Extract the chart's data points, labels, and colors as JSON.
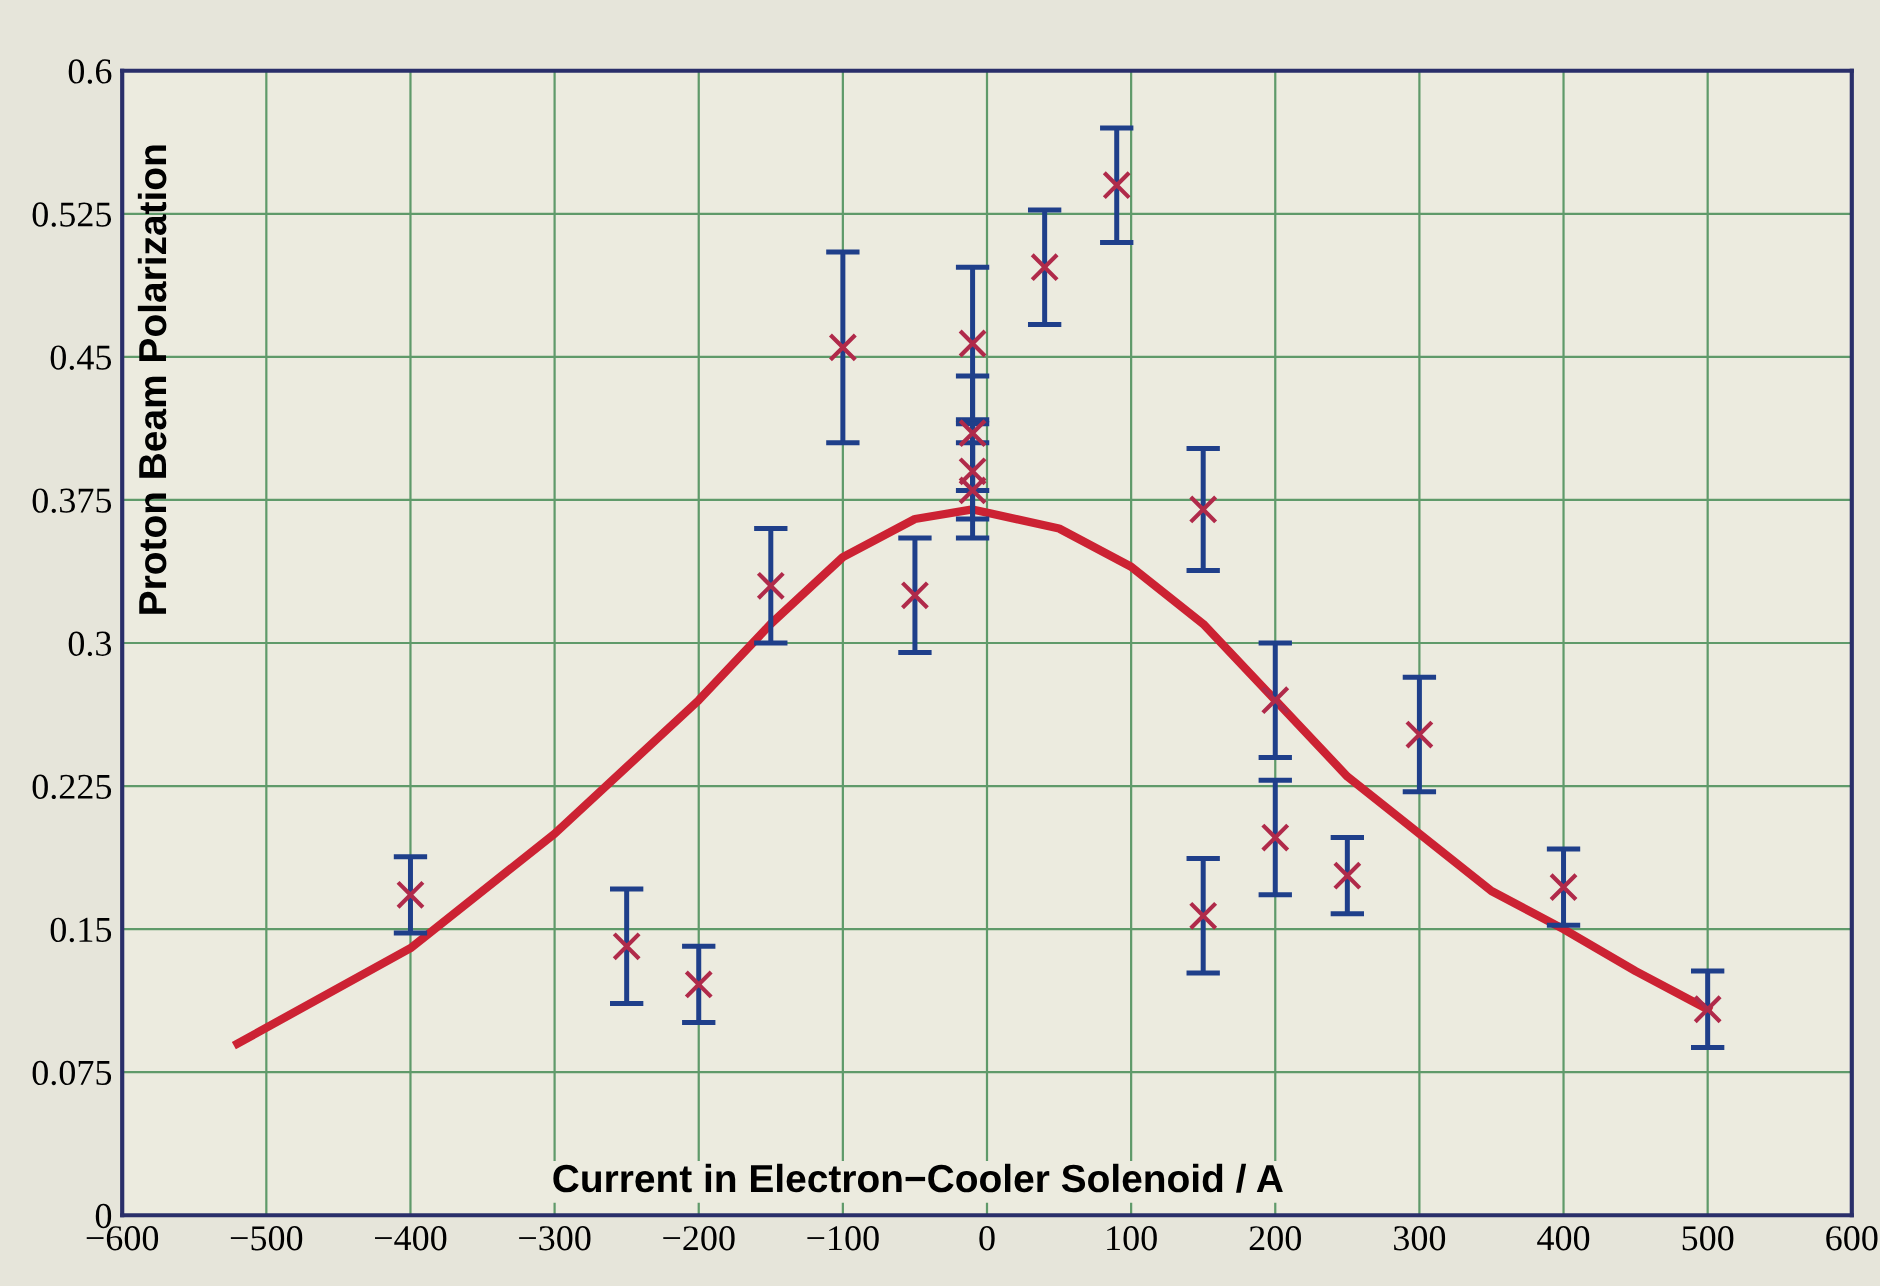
{
  "chart_data": {
    "type": "scatter",
    "xlabel": "Current in Electron−Cooler Solenoid / A",
    "ylabel": "Proton Beam Polarization",
    "xlim": [
      -600,
      600
    ],
    "ylim": [
      0,
      0.6
    ],
    "xticks": [
      {
        "value": -600,
        "label": "−600"
      },
      {
        "value": -500,
        "label": "−500"
      },
      {
        "value": -400,
        "label": "−400"
      },
      {
        "value": -300,
        "label": "−300"
      },
      {
        "value": -200,
        "label": "−200"
      },
      {
        "value": -100,
        "label": "−100"
      },
      0,
      100,
      200,
      300,
      400,
      500,
      600
    ],
    "yticks": [
      0,
      0.075,
      0.15,
      0.225,
      0.3,
      0.375,
      0.45,
      0.525,
      0.6
    ],
    "grid": true,
    "series": [
      {
        "color": "#b02a4a",
        "marker": "cross",
        "x": [
          -400,
          -250,
          -200,
          -150,
          -100,
          -50,
          -10,
          -10,
          -10,
          -10,
          40,
          90,
          150,
          150,
          200,
          200,
          250,
          300,
          400,
          500
        ],
        "values": [
          0.168,
          0.141,
          0.121,
          0.33,
          0.455,
          0.325,
          0.457,
          0.41,
          0.39,
          0.38,
          0.497,
          0.54,
          0.37,
          0.157,
          0.27,
          0.198,
          0.178,
          0.252,
          0.172,
          0.108
        ],
        "errors": [
          0.02,
          0.03,
          0.02,
          0.03,
          0.05,
          0.03,
          0.04,
          0.03,
          0.025,
          0.025,
          0.03,
          0.03,
          0.032,
          0.03,
          0.03,
          0.03,
          0.02,
          0.03,
          0.02,
          0.02
        ]
      },
      {
        "type": "line",
        "color": "#cc2233",
        "marker": "none",
        "line_style": "solid",
        "x": [
          -520,
          -400,
          -300,
          -200,
          -150,
          -100,
          -50,
          -10,
          50,
          100,
          150,
          200,
          250,
          300,
          350,
          400,
          450,
          500
        ],
        "values": [
          0.09,
          0.14,
          0.2,
          0.27,
          0.31,
          0.345,
          0.365,
          0.37,
          0.36,
          0.34,
          0.31,
          0.27,
          0.23,
          0.2,
          0.17,
          0.15,
          0.128,
          0.108
        ]
      }
    ]
  }
}
